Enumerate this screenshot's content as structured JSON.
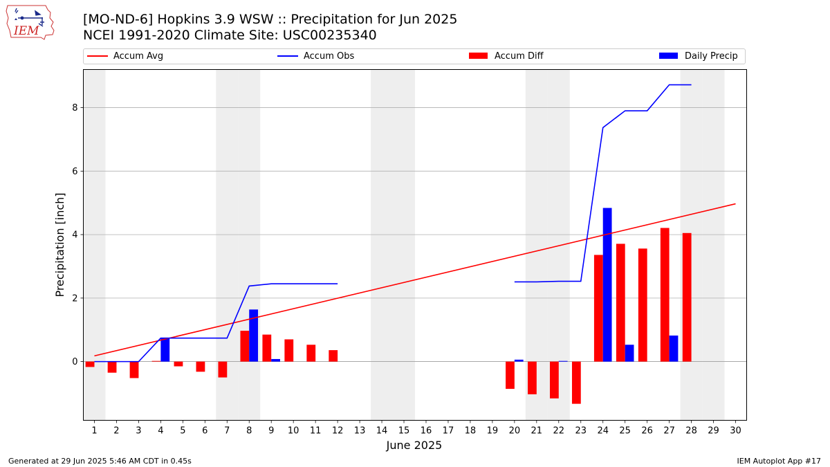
{
  "header": {
    "title_line1": "[MO-ND-6] Hopkins 3.9 WSW :: Precipitation for Jun 2025",
    "title_line2": "NCEI 1991-2020 Climate Site: USC00235340",
    "logo_text": "IEM"
  },
  "footer": {
    "generated": "Generated at 29 Jun 2025 5:46 AM CDT in 0.45s",
    "app": "IEM Autoplot App #17"
  },
  "colors": {
    "accum_avg": "#ff0000",
    "accum_obs": "#0000ff",
    "accum_diff": "#ff0000",
    "daily_precip": "#0000ff",
    "weekend_shade": "#eeeeee",
    "grid": "#b0b0b0"
  },
  "chart_data": {
    "type": "bar",
    "xlabel": "June 2025",
    "ylabel": "Precipitation [inch]",
    "xlim": [
      0.5,
      30.5
    ],
    "ylim": [
      -1.85,
      9.2
    ],
    "x_ticks": [
      1,
      2,
      3,
      4,
      5,
      6,
      7,
      8,
      9,
      10,
      11,
      12,
      13,
      14,
      15,
      16,
      17,
      18,
      19,
      20,
      21,
      22,
      23,
      24,
      25,
      26,
      27,
      28,
      29,
      30
    ],
    "y_ticks": [
      0,
      2,
      4,
      6,
      8
    ],
    "grid": "horizontal",
    "legend": {
      "placement": "top",
      "entries": [
        "Accum Avg",
        "Accum Obs",
        "Accum Diff",
        "Daily Precip"
      ]
    },
    "weekend_days": [
      1,
      7,
      8,
      14,
      15,
      21,
      22,
      28,
      29
    ],
    "series": [
      {
        "name": "Accum Avg",
        "kind": "line",
        "x": [
          1,
          30
        ],
        "values": [
          0.18,
          4.97
        ]
      },
      {
        "name": "Accum Obs",
        "kind": "line",
        "segments": [
          {
            "x": [
              1,
              2,
              3,
              4,
              5,
              6,
              7,
              8,
              9,
              10,
              11,
              12
            ],
            "values": [
              0.0,
              0.0,
              0.0,
              0.74,
              0.74,
              0.74,
              0.74,
              2.38,
              2.45,
              2.45,
              2.45,
              2.45
            ]
          },
          {
            "x": [
              20,
              21,
              22,
              23,
              24,
              25,
              26,
              27,
              28
            ],
            "values": [
              2.51,
              2.51,
              2.53,
              2.53,
              7.37,
              7.9,
              7.9,
              8.72,
              8.72
            ]
          }
        ]
      },
      {
        "name": "Accum Diff",
        "kind": "bar",
        "x": [
          1,
          2,
          3,
          4,
          5,
          6,
          7,
          8,
          9,
          10,
          11,
          12,
          20,
          21,
          22,
          23,
          24,
          25,
          26,
          27,
          28
        ],
        "values": [
          -0.17,
          -0.35,
          -0.52,
          0.02,
          -0.15,
          -0.32,
          -0.5,
          0.97,
          0.85,
          0.7,
          0.53,
          0.36,
          -0.86,
          -1.03,
          -1.16,
          -1.33,
          3.36,
          3.71,
          3.56,
          4.21,
          4.05
        ]
      },
      {
        "name": "Daily Precip",
        "kind": "bar",
        "x": [
          4,
          8,
          9,
          20,
          22,
          24,
          25,
          27
        ],
        "values": [
          0.74,
          1.64,
          0.08,
          0.06,
          0.02,
          4.84,
          0.53,
          0.82
        ]
      }
    ]
  }
}
